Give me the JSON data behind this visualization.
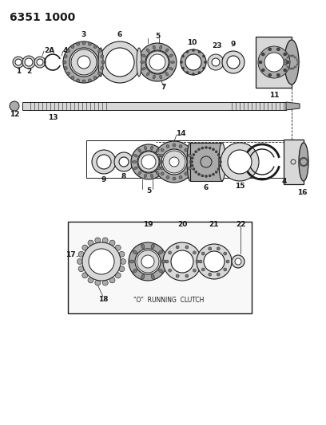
{
  "title_code": "6351 1000",
  "bg_color": "#ffffff",
  "line_color": "#1a1a1a",
  "gray_light": "#d8d8d8",
  "gray_mid": "#aaaaaa",
  "gray_dark": "#777777",
  "gray_darker": "#444444",
  "inset_label": "\"O\"  RUNNING  CLUTCH",
  "font_size_title": 10,
  "font_size_labels": 6.5,
  "fig_w": 4.08,
  "fig_h": 5.33,
  "dpi": 100
}
